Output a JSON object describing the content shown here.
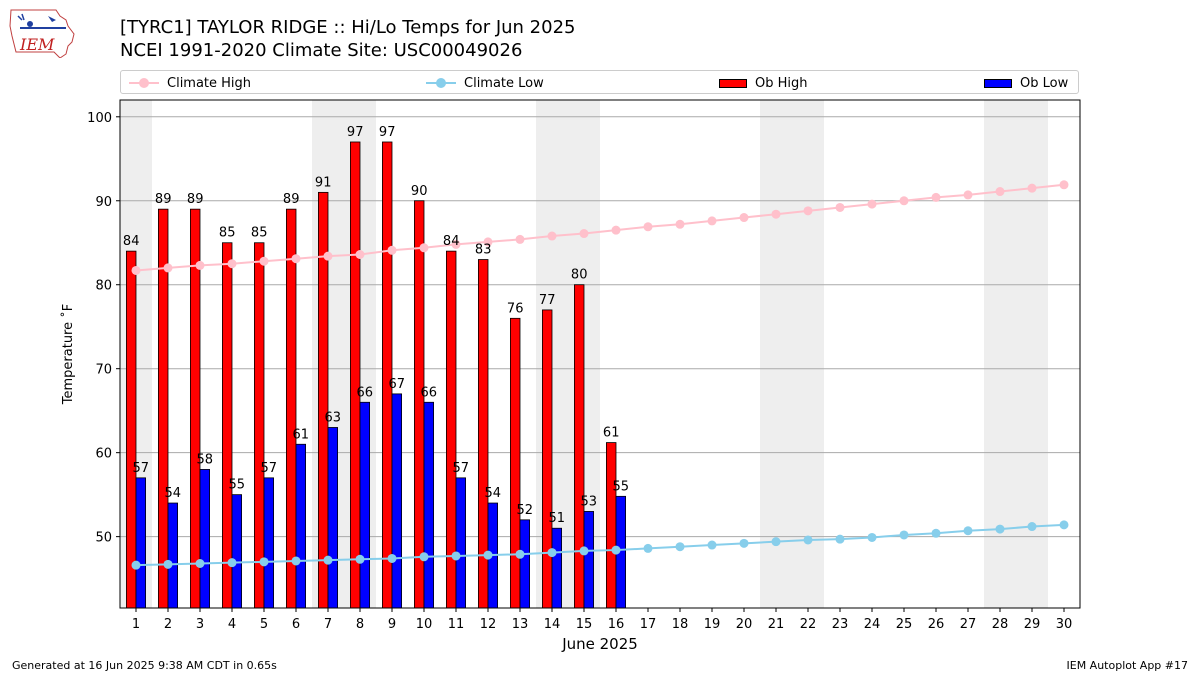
{
  "header": {
    "title_line1": "[TYRC1] TAYLOR RIDGE :: Hi/Lo Temps for Jun 2025",
    "title_line2": "NCEI 1991-2020 Climate Site: USC00049026",
    "logo_text": "IEM"
  },
  "legend": {
    "items": [
      {
        "label": "Climate High",
        "color": "#ffc0cb",
        "kind": "line"
      },
      {
        "label": "Climate Low",
        "color": "#87ceeb",
        "kind": "line"
      },
      {
        "label": "Ob High",
        "color": "#ff0000",
        "kind": "bar"
      },
      {
        "label": "Ob Low",
        "color": "#0000ff",
        "kind": "bar"
      }
    ]
  },
  "footer": {
    "left": "Generated at 16 Jun 2025 9:38 AM CDT in 0.65s",
    "right": "IEM Autoplot App #17"
  },
  "chart_data": {
    "type": "bar",
    "xlabel": "June 2025",
    "ylabel": "Temperature ˚F",
    "ylim": [
      41.5,
      102
    ],
    "xlim": [
      0.5,
      30.5
    ],
    "yticks": [
      50,
      60,
      70,
      80,
      90,
      100
    ],
    "days": [
      1,
      2,
      3,
      4,
      5,
      6,
      7,
      8,
      9,
      10,
      11,
      12,
      13,
      14,
      15,
      16,
      17,
      18,
      19,
      20,
      21,
      22,
      23,
      24,
      25,
      26,
      27,
      28,
      29,
      30
    ],
    "weekend_bands": [
      [
        1,
        1
      ],
      [
        7,
        8
      ],
      [
        14,
        15
      ],
      [
        21,
        22
      ],
      [
        28,
        29
      ]
    ],
    "grid": "horizontal",
    "colors": {
      "ob_high": "#ff0000",
      "ob_low": "#0000ff",
      "climate_high": "#ffc0cb",
      "climate_low": "#87ceeb",
      "weekend": "#eeeeee",
      "grid": "#aaaaaa"
    },
    "series": [
      {
        "name": "Ob High",
        "kind": "bar",
        "values": [
          84,
          89,
          89,
          85,
          85,
          89,
          91,
          97,
          97,
          90,
          84,
          83,
          76,
          77,
          80,
          61.2
        ]
      },
      {
        "name": "Ob Low",
        "kind": "bar",
        "values": [
          57,
          54,
          58,
          55,
          57,
          61,
          63,
          66,
          67,
          66,
          57,
          54,
          52,
          51,
          53,
          54.8
        ]
      },
      {
        "name": "Climate High",
        "kind": "line",
        "values": [
          81.7,
          82.0,
          82.3,
          82.5,
          82.8,
          83.1,
          83.4,
          83.6,
          84.1,
          84.4,
          84.8,
          85.1,
          85.4,
          85.8,
          86.1,
          86.5,
          86.9,
          87.2,
          87.6,
          88.0,
          88.4,
          88.8,
          89.2,
          89.6,
          90.0,
          90.4,
          90.7,
          91.1,
          91.5,
          91.9
        ]
      },
      {
        "name": "Climate Low",
        "kind": "line",
        "values": [
          46.6,
          46.7,
          46.8,
          46.9,
          47.0,
          47.1,
          47.2,
          47.3,
          47.4,
          47.6,
          47.7,
          47.8,
          47.9,
          48.1,
          48.3,
          48.4,
          48.6,
          48.8,
          49.0,
          49.2,
          49.4,
          49.6,
          49.7,
          49.9,
          50.2,
          50.4,
          50.7,
          50.9,
          51.2,
          51.4
        ]
      }
    ],
    "bar_labels_high": [
      "84",
      "89",
      "89",
      "85",
      "85",
      "89",
      "91",
      "97",
      "97",
      "90",
      "84",
      "83",
      "76",
      "77",
      "80",
      "61"
    ],
    "bar_labels_low": [
      "57",
      "54",
      "58",
      "55",
      "57",
      "61",
      "63",
      "66",
      "67",
      "66",
      "57",
      "54",
      "52",
      "51",
      "53",
      "55"
    ]
  }
}
